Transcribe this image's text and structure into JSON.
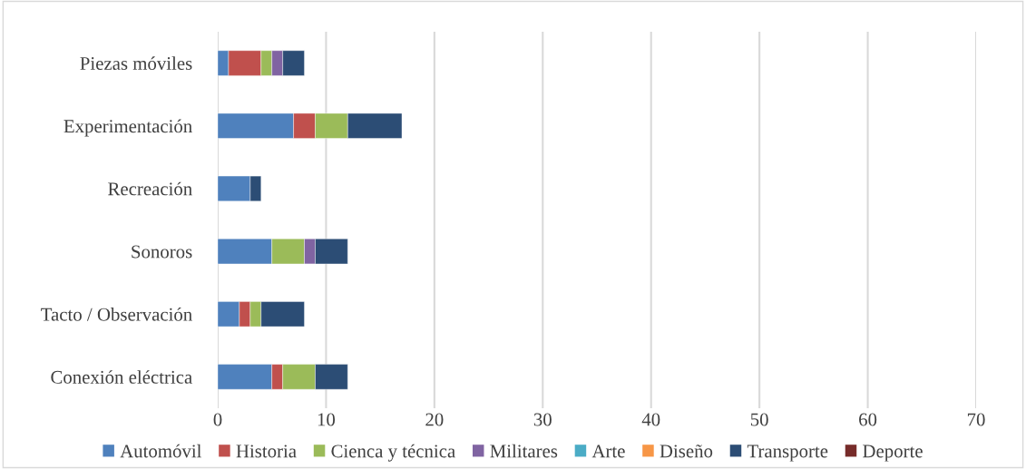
{
  "chart_data": {
    "type": "bar",
    "orientation": "horizontal",
    "stacked": true,
    "categories": [
      "Piezas móviles",
      "Experimentación",
      "Recreación",
      "Sonoros",
      "Tacto / Observación",
      "Conexión eléctrica"
    ],
    "series": [
      {
        "name": "Automóvil",
        "color": "#4f81bd",
        "values": [
          1,
          7,
          3,
          5,
          2,
          5
        ]
      },
      {
        "name": "Historia",
        "color": "#c0504d",
        "values": [
          3,
          2,
          0,
          0,
          1,
          1
        ]
      },
      {
        "name": "Cienca y técnica",
        "color": "#9bbb59",
        "values": [
          1,
          3,
          0,
          3,
          1,
          3
        ]
      },
      {
        "name": "Militares",
        "color": "#8064a2",
        "values": [
          1,
          0,
          0,
          1,
          0,
          0
        ]
      },
      {
        "name": "Arte",
        "color": "#4bacc6",
        "values": [
          0,
          0,
          0,
          0,
          0,
          0
        ]
      },
      {
        "name": "Diseño",
        "color": "#f79646",
        "values": [
          0,
          0,
          0,
          0,
          0,
          0
        ]
      },
      {
        "name": "Transporte",
        "color": "#2c4d75",
        "values": [
          2,
          5,
          1,
          3,
          4,
          3
        ]
      },
      {
        "name": "Deporte",
        "color": "#772c2a",
        "values": [
          0,
          0,
          0,
          0,
          0,
          0
        ]
      }
    ],
    "xlim": [
      0,
      70
    ],
    "xticks": [
      0,
      10,
      20,
      30,
      40,
      50,
      60,
      70
    ],
    "grid": "x",
    "legend": "bottom"
  }
}
